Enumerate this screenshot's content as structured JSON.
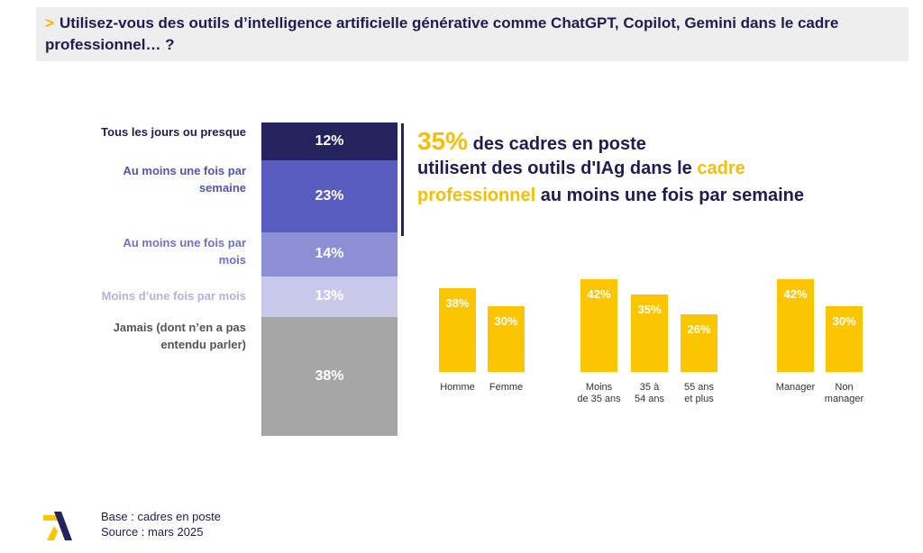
{
  "header": {
    "prefix": ">",
    "title": "Utilisez-vous des outils d’intelligence artificielle générative comme ChatGPT, Copilot, Gemini dans le cadre professionnel… ?"
  },
  "chart_data": [
    {
      "type": "stacked-bar",
      "categories": [
        [
          "Tous les jours ou presque"
        ],
        [
          "Au moins une fois par",
          "semaine"
        ],
        [
          "Au moins une fois par",
          "mois"
        ],
        [
          "Moins d’une fois par mois"
        ],
        [
          "Jamais (dont n’en a pas",
          "entendu parler)"
        ]
      ],
      "values": [
        12,
        23,
        14,
        13,
        38
      ],
      "value_labels": [
        "12%",
        "23%",
        "14%",
        "13%",
        "38%"
      ],
      "colors": [
        "#25235e",
        "#5a5bbf",
        "#8d8fd4",
        "#c8c8ea",
        "#a6a6a6"
      ],
      "label_colors": [
        "#1f1d4f",
        "#5153b5",
        "#6f71c2",
        "#b3b3de",
        "#555555"
      ]
    },
    {
      "type": "bar",
      "categories": [
        [
          "Homme"
        ],
        [
          "Femme"
        ],
        [
          "Moins",
          "de 35 ans"
        ],
        [
          "35 à",
          "54 ans"
        ],
        [
          "55 ans",
          "et plus"
        ],
        [
          "Manager"
        ],
        [
          "Non",
          "manager"
        ]
      ],
      "values": [
        38,
        30,
        42,
        35,
        26,
        42,
        30
      ],
      "value_labels": [
        "38%",
        "30%",
        "42%",
        "35%",
        "26%",
        "42%",
        "30%"
      ],
      "color": "#fbc600"
    }
  ],
  "headline": {
    "lines": [
      [
        {
          "text": "35%",
          "highlight": true,
          "big": true
        },
        {
          "text": " des cadres en poste"
        }
      ],
      [
        {
          "text": "utilisent des outils d'IAg dans le "
        },
        {
          "text": "cadre",
          "highlight": true
        }
      ],
      [
        {
          "text": "professionnel",
          "highlight": true
        },
        {
          "text": " au moins une fois par semaine"
        }
      ]
    ]
  },
  "footer": {
    "lines": [
      "Base : cadres en poste",
      "Source : mars 2025"
    ]
  }
}
